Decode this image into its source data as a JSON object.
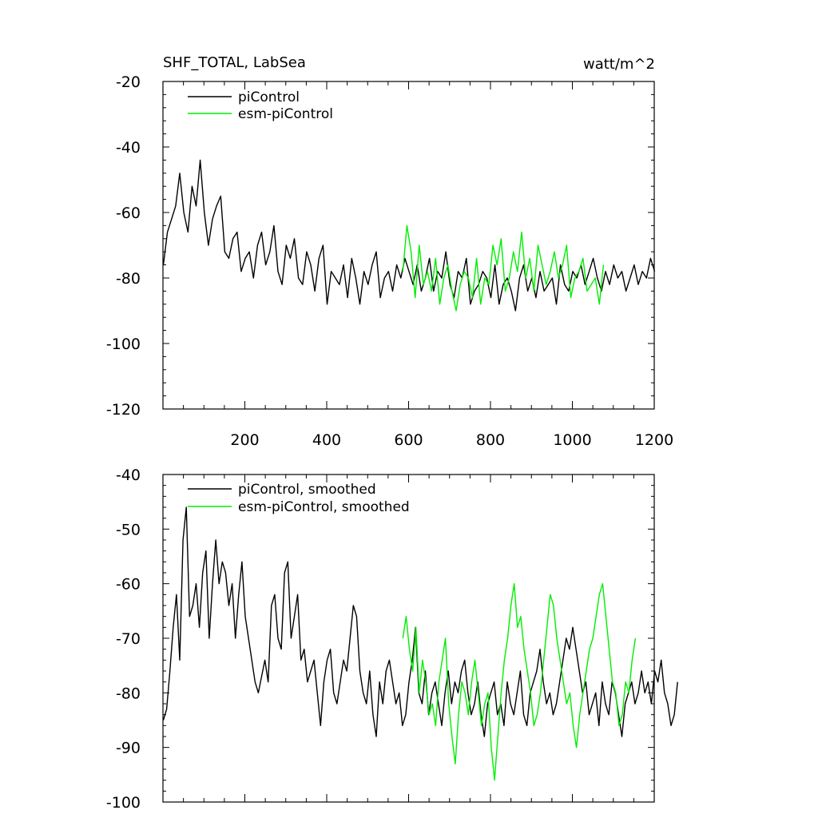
{
  "chart_data": [
    {
      "type": "line",
      "title_left": "SHF_TOTAL, LabSea",
      "title_right": "watt/m^2",
      "xlim": [
        0,
        1200
      ],
      "ylim": [
        -120,
        -20
      ],
      "xticks": [
        200,
        400,
        600,
        800,
        1000,
        1200
      ],
      "xtick_labels": [
        "200",
        "400",
        "600",
        "800",
        "1000",
        "1200"
      ],
      "yticks": [
        -120,
        -100,
        -80,
        -60,
        -40,
        -20
      ],
      "ytick_labels": [
        "-120",
        "-100",
        "-80",
        "-60",
        "-40",
        "-20"
      ],
      "legend_position": "top-left",
      "series": [
        {
          "name": "piControl",
          "color": "#000000",
          "x_start": 1,
          "x_step": 10,
          "values": [
            -76,
            -66,
            -62,
            -58,
            -48,
            -60,
            -66,
            -52,
            -58,
            -44,
            -60,
            -70,
            -62,
            -58,
            -55,
            -72,
            -74,
            -68,
            -66,
            -78,
            -74,
            -72,
            -80,
            -70,
            -66,
            -76,
            -72,
            -64,
            -78,
            -82,
            -70,
            -74,
            -68,
            -80,
            -82,
            -72,
            -76,
            -84,
            -74,
            -70,
            -88,
            -78,
            -80,
            -82,
            -76,
            -86,
            -74,
            -80,
            -88,
            -78,
            -82,
            -76,
            -72,
            -86,
            -80,
            -78,
            -84,
            -76,
            -80,
            -74,
            -78,
            -82,
            -76,
            -84,
            -80,
            -74,
            -84,
            -78,
            -80,
            -72,
            -82,
            -86,
            -78,
            -80,
            -74,
            -88,
            -84,
            -82,
            -78,
            -80,
            -86,
            -76,
            -88,
            -82,
            -80,
            -84,
            -90,
            -80,
            -76,
            -84,
            -80,
            -86,
            -78,
            -84,
            -82,
            -80,
            -88,
            -76,
            -82,
            -84,
            -78,
            -80,
            -76,
            -82,
            -78,
            -74,
            -80,
            -84,
            -78,
            -82,
            -76,
            -80,
            -78,
            -84,
            -80,
            -76,
            -82,
            -78,
            -80,
            -74,
            -78
          ]
        },
        {
          "name": "esm-piControl",
          "color": "#00ee00",
          "x_start": 586,
          "x_step": 10,
          "values": [
            -78,
            -64,
            -72,
            -86,
            -70,
            -82,
            -78,
            -84,
            -74,
            -88,
            -80,
            -76,
            -84,
            -90,
            -82,
            -78,
            -80,
            -86,
            -74,
            -88,
            -80,
            -82,
            -70,
            -76,
            -68,
            -84,
            -80,
            -72,
            -78,
            -66,
            -80,
            -74,
            -84,
            -70,
            -76,
            -82,
            -78,
            -72,
            -80,
            -76,
            -70,
            -86,
            -80,
            -78,
            -74,
            -84,
            -82,
            -80,
            -88,
            -76
          ]
        }
      ]
    },
    {
      "type": "line",
      "xlim": [
        0,
        1200
      ],
      "ylim": [
        -100,
        -40
      ],
      "xticks": [
        200,
        400,
        600,
        800,
        1000,
        1200
      ],
      "yticks": [
        -100,
        -90,
        -80,
        -70,
        -60,
        -50,
        -40
      ],
      "ytick_labels": [
        "-100",
        "-90",
        "-80",
        "-70",
        "-60",
        "-50",
        "-40"
      ],
      "legend_position": "top-left",
      "series": [
        {
          "name": "piControl, smoothed",
          "color": "#000000",
          "x_start": 1,
          "x_step": 8,
          "values": [
            -85,
            -83,
            -76,
            -68,
            -62,
            -74,
            -52,
            -46,
            -66,
            -64,
            -60,
            -68,
            -58,
            -54,
            -70,
            -60,
            -52,
            -60,
            -56,
            -58,
            -64,
            -60,
            -70,
            -62,
            -56,
            -66,
            -70,
            -74,
            -78,
            -80,
            -77,
            -74,
            -78,
            -64,
            -62,
            -70,
            -72,
            -58,
            -56,
            -70,
            -66,
            -62,
            -74,
            -72,
            -78,
            -76,
            -74,
            -80,
            -86,
            -78,
            -74,
            -72,
            -80,
            -82,
            -78,
            -74,
            -76,
            -70,
            -64,
            -66,
            -76,
            -80,
            -82,
            -76,
            -84,
            -88,
            -78,
            -82,
            -76,
            -74,
            -78,
            -82,
            -80,
            -86,
            -84,
            -78,
            -74,
            -68,
            -80,
            -82,
            -76,
            -84,
            -80,
            -78,
            -82,
            -86,
            -80,
            -76,
            -82,
            -78,
            -80,
            -76,
            -74,
            -80,
            -84,
            -82,
            -78,
            -84,
            -88,
            -82,
            -80,
            -78,
            -84,
            -82,
            -86,
            -78,
            -82,
            -84,
            -80,
            -76,
            -84,
            -86,
            -80,
            -78,
            -76,
            -72,
            -78,
            -82,
            -80,
            -84,
            -82,
            -78,
            -74,
            -70,
            -72,
            -68,
            -72,
            -76,
            -80,
            -78,
            -84,
            -82,
            -80,
            -86,
            -78,
            -82,
            -84,
            -78,
            -80,
            -84,
            -88,
            -82,
            -80,
            -78,
            -82,
            -80,
            -76,
            -80,
            -78,
            -82,
            -76,
            -78,
            -74,
            -80,
            -82,
            -86,
            -84,
            -78
          ]
        },
        {
          "name": "esm-piControl, smoothed",
          "color": "#00ee00",
          "x_start": 586,
          "x_step": 8,
          "values": [
            -70,
            -66,
            -72,
            -76,
            -68,
            -80,
            -74,
            -78,
            -84,
            -82,
            -86,
            -78,
            -74,
            -70,
            -82,
            -88,
            -93,
            -84,
            -78,
            -80,
            -84,
            -78,
            -74,
            -80,
            -86,
            -82,
            -80,
            -90,
            -96,
            -88,
            -80,
            -74,
            -70,
            -64,
            -60,
            -68,
            -66,
            -72,
            -76,
            -80,
            -86,
            -84,
            -80,
            -74,
            -68,
            -62,
            -64,
            -70,
            -74,
            -78,
            -82,
            -80,
            -86,
            -90,
            -84,
            -80,
            -76,
            -72,
            -70,
            -66,
            -62,
            -60,
            -66,
            -72,
            -78,
            -80,
            -86,
            -84,
            -78,
            -80,
            -74,
            -70
          ]
        }
      ]
    }
  ]
}
